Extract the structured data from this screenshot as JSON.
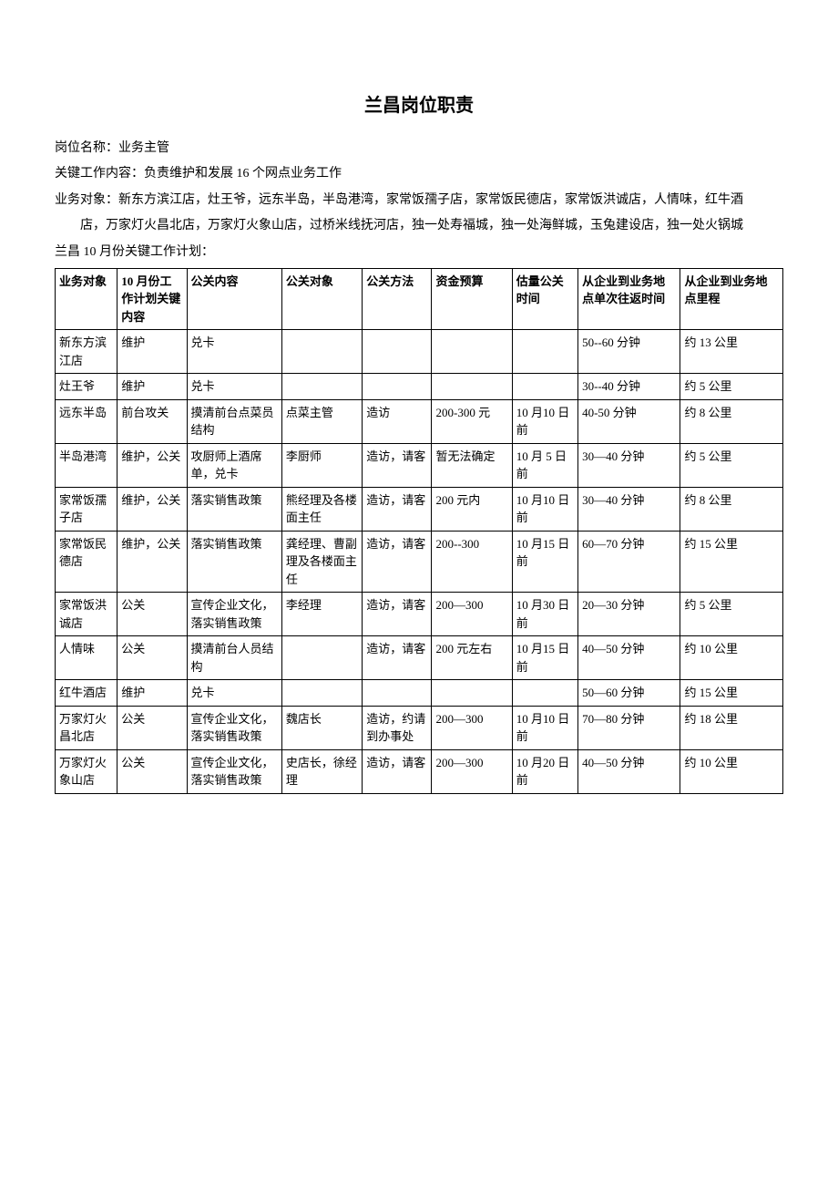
{
  "title": "兰昌岗位职责",
  "meta": {
    "position_label": "岗位名称：",
    "position_value": "业务主管",
    "key_work_label": "关键工作内容：",
    "key_work_value": "负责维护和发展 16 个网点业务工作",
    "targets_label": "业务对象：",
    "targets_value": "新东方滨江店，灶王爷，远东半岛，半岛港湾，家常饭孺子店，家常饭民德店，家常饭洪诚店，人情味，红牛酒",
    "targets_value2": "店，万家灯火昌北店，万家灯火象山店，过桥米线抚河店，独一处寿福城，独一处海鲜城，玉兔建设店，独一处火锅城",
    "plan_label": "兰昌 10 月份关键工作计划："
  },
  "table": {
    "columns": [
      "业务对象",
      "10 月份工作计划关键内容",
      "公关内容",
      "公关对象",
      "公关方法",
      "资金预算",
      "估量公关时间",
      "从企业到业务地点单次往返时间",
      "从企业到业务地点里程"
    ],
    "rows": [
      [
        "新东方滨江店",
        "维护",
        "兑卡",
        "",
        "",
        "",
        "",
        "50--60 分钟",
        "约 13 公里"
      ],
      [
        "灶王爷",
        "维护",
        "兑卡",
        "",
        "",
        "",
        "",
        "30--40 分钟",
        "约 5 公里"
      ],
      [
        "远东半岛",
        "前台攻关",
        "摸清前台点菜员结构",
        "点菜主管",
        "造访",
        "200-300 元",
        "10 月10 日前",
        "40-50 分钟",
        "约 8 公里"
      ],
      [
        "半岛港湾",
        "维护，公关",
        "攻厨师上酒席单，兑卡",
        "李厨师",
        "造访，请客",
        "暂无法确定",
        "10 月 5 日前",
        "30—40 分钟",
        "约 5 公里"
      ],
      [
        "家常饭孺子店",
        "维护，公关",
        "落实销售政策",
        "熊经理及各楼面主任",
        "造访，请客",
        "200 元内",
        "10 月10 日前",
        "30—40 分钟",
        "约 8 公里"
      ],
      [
        "家常饭民德店",
        "维护，公关",
        "落实销售政策",
        "龚经理、曹副理及各楼面主任",
        "造访，请客",
        "200--300",
        "10 月15 日前",
        "60—70 分钟",
        "约 15 公里"
      ],
      [
        "家常饭洪诚店",
        "公关",
        "宣传企业文化，落实销售政策",
        "李经理",
        "造访，请客",
        "200—300",
        "10 月30 日前",
        "20—30 分钟",
        "约 5 公里"
      ],
      [
        "人情味",
        "公关",
        "摸清前台人员结构",
        "",
        "造访，请客",
        "200 元左右",
        "10 月15 日前",
        "40—50 分钟",
        "约 10 公里"
      ],
      [
        "红牛酒店",
        "维护",
        "兑卡",
        "",
        "",
        "",
        "",
        "50—60 分钟",
        "约 15 公里"
      ],
      [
        "万家灯火昌北店",
        "公关",
        "宣传企业文化，落实销售政策",
        "魏店长",
        "造访，约请到办事处",
        "200—300",
        "10 月10 日前",
        "70—80 分钟",
        "约 18 公里"
      ],
      [
        "万家灯火象山店",
        "公关",
        "宣传企业文化，落实销售政策",
        "史店长，徐经理",
        "造访，请客",
        "200—300",
        "10 月20 日前",
        "40—50 分钟",
        "约 10 公里"
      ]
    ]
  },
  "style": {
    "background_color": "#ffffff",
    "text_color": "#000000",
    "border_color": "#000000",
    "title_fontsize": 20,
    "body_fontsize": 14,
    "cell_fontsize": 13
  }
}
